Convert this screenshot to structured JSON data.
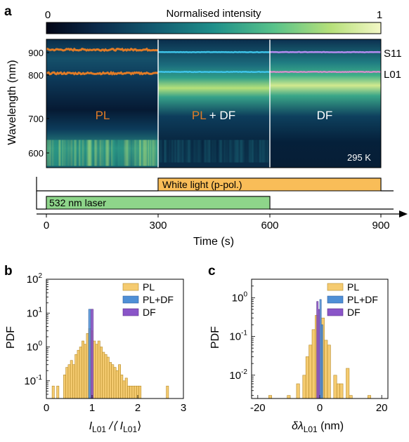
{
  "panel_a": {
    "letter": "a",
    "colorbar": {
      "title": "Normalised intensity",
      "min_label": "0",
      "max_label": "1",
      "colors": [
        "#020515",
        "#0b2a4a",
        "#125a70",
        "#1f8f8a",
        "#58c28a",
        "#b6e07a",
        "#f3f7c6"
      ]
    },
    "ylabel": "Wavelength (nm)",
    "yticks": [
      "900",
      "800",
      "700",
      "600"
    ],
    "regions": [
      {
        "label_prefix": "PL",
        "label_suffix": ""
      },
      {
        "label_prefix": "PL",
        "label_suffix": " + DF"
      },
      {
        "label_prefix": "",
        "label_suffix": "DF"
      }
    ],
    "temperature": "295 K",
    "line_labels": [
      "S11",
      "L01"
    ],
    "timeline": {
      "white_light_label": "White light (p-pol.)",
      "laser_label": "532 nm laser",
      "xticks": [
        "0",
        "300",
        "600",
        "900"
      ],
      "xlabel": "Time (s)"
    },
    "colors": {
      "pl": "#e07b27",
      "df_s11": "#b58cf0",
      "pldf": "#3ec3e8",
      "white_light": "#f9bd58",
      "laser": "#8ed58a"
    }
  },
  "panel_b": {
    "letter": "b",
    "ylabel": "PDF",
    "xlabel_main": "I",
    "xlabel_sub": "L01",
    "xlabel_mid": " /⟨ I",
    "xlabel_sub2": "L01",
    "xlabel_end": "⟩",
    "yticks": [
      {
        "b": "10",
        "e": "2"
      },
      {
        "b": "10",
        "e": "1"
      },
      {
        "b": "10",
        "e": "0"
      },
      {
        "b": "10",
        "e": "-1"
      }
    ],
    "xticks": [
      "0",
      "1",
      "2",
      "3"
    ],
    "legend": [
      "PL",
      "PL+DF",
      "DF"
    ]
  },
  "panel_c": {
    "letter": "c",
    "ylabel": "PDF",
    "xlabel_main": "δλ",
    "xlabel_sub": "L01",
    "xlabel_end": " (nm)",
    "yticks": [
      {
        "b": "10",
        "e": "0"
      },
      {
        "b": "10",
        "e": "-1"
      },
      {
        "b": "10",
        "e": "-2"
      }
    ],
    "xticks": [
      "-20",
      "0",
      "20"
    ],
    "legend": [
      "PL",
      "PL+DF",
      "DF"
    ]
  },
  "chart_data": [
    {
      "type": "heatmap",
      "title": "",
      "ylabel": "Wavelength (nm)",
      "xlabel": "Time (s)",
      "xlim": [
        0,
        900
      ],
      "ylim": [
        560,
        930
      ],
      "colorbar": {
        "label": "Normalised intensity",
        "range": [
          0,
          1
        ]
      },
      "series": [
        {
          "name": "S11",
          "segments": [
            {
              "t": [
                0,
                300
              ],
              "wavelength": 900
            },
            {
              "t": [
                300,
                600
              ],
              "wavelength": 893
            },
            {
              "t": [
                600,
                900
              ],
              "wavelength": 893
            }
          ]
        },
        {
          "name": "L01",
          "segments": [
            {
              "t": [
                0,
                300
              ],
              "wavelength": 832
            },
            {
              "t": [
                300,
                600
              ],
              "wavelength": 836
            },
            {
              "t": [
                600,
                900
              ],
              "wavelength": 836
            }
          ]
        }
      ],
      "regions": [
        {
          "name": "PL",
          "t": [
            0,
            300
          ]
        },
        {
          "name": "PL + DF",
          "t": [
            300,
            600
          ]
        },
        {
          "name": "DF",
          "t": [
            600,
            900
          ]
        }
      ],
      "timeline": [
        {
          "name": "White light (p-pol.)",
          "t": [
            300,
            900
          ]
        },
        {
          "name": "532 nm laser",
          "t": [
            0,
            600
          ]
        }
      ],
      "annotation": "295 K"
    },
    {
      "type": "bar",
      "ylabel": "PDF",
      "xlabel": "I_L01 / <I_L01>",
      "xlim": [
        0,
        3
      ],
      "ylim": [
        0.03,
        100
      ],
      "yscale": "log",
      "legend": "top-right",
      "series": [
        {
          "name": "PL",
          "bin_width": 0.05,
          "x": [
            0.15,
            0.25,
            0.4,
            0.45,
            0.5,
            0.55,
            0.6,
            0.65,
            0.7,
            0.75,
            0.8,
            0.85,
            0.9,
            0.95,
            1.0,
            1.05,
            1.1,
            1.15,
            1.2,
            1.25,
            1.3,
            1.35,
            1.4,
            1.45,
            1.5,
            1.55,
            1.6,
            1.65,
            1.7,
            1.75,
            1.8,
            1.85,
            1.9,
            1.95,
            2.0,
            2.05,
            2.65
          ],
          "values": [
            0.07,
            0.07,
            0.15,
            0.25,
            0.3,
            0.4,
            0.3,
            0.6,
            0.8,
            1.0,
            1.5,
            1.2,
            2.5,
            3.5,
            3.0,
            1.5,
            1.2,
            1.5,
            1.0,
            0.7,
            0.6,
            0.5,
            0.35,
            0.3,
            0.25,
            0.2,
            0.3,
            0.15,
            0.1,
            0.12,
            0.07,
            0.07,
            0.07,
            0.07,
            0.07,
            0.07,
            0.07
          ]
        },
        {
          "name": "PL+DF",
          "bin_width": 0.05,
          "x": [
            0.95
          ],
          "values": [
            13
          ]
        },
        {
          "name": "DF",
          "bin_width": 0.05,
          "x": [
            1.0
          ],
          "values": [
            13
          ]
        }
      ]
    },
    {
      "type": "bar",
      "ylabel": "PDF",
      "xlabel": "δλ_L01 (nm)",
      "xlim": [
        -22,
        22
      ],
      "ylim": [
        0.0025,
        3
      ],
      "yscale": "log",
      "legend": "top-right",
      "series": [
        {
          "name": "PL",
          "bin_width": 1.0,
          "x": [
            -16,
            -10,
            -7,
            -5,
            -4,
            -3,
            -2,
            -1,
            1,
            2,
            3,
            5,
            6,
            7,
            9,
            10,
            16
          ],
          "values": [
            0.003,
            0.003,
            0.006,
            0.01,
            0.03,
            0.06,
            0.15,
            0.35,
            0.3,
            0.08,
            0.06,
            0.01,
            0.006,
            0.006,
            0.015,
            0.003,
            0.003
          ]
        },
        {
          "name": "PL+DF",
          "bin_width": 0.5,
          "x": [
            0.25,
            0.75
          ],
          "values": [
            0.9,
            0.2
          ]
        },
        {
          "name": "DF",
          "bin_width": 0.5,
          "x": [
            -0.75,
            -0.25
          ],
          "values": [
            0.8,
            0.5
          ]
        }
      ]
    }
  ]
}
